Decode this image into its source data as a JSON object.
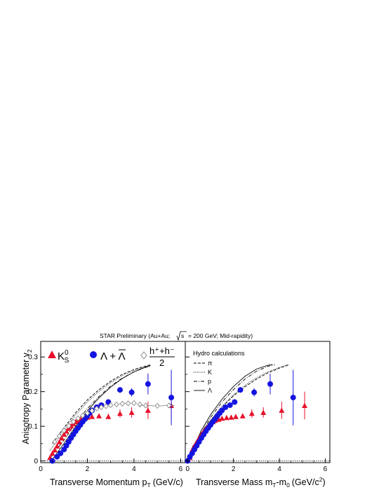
{
  "figure": {
    "title": "STAR Preliminary (Au+Au;",
    "title_sqrt": "s",
    "title_tail": "= 200 GeV; Mid-rapidity)",
    "ylabel": "Anisotropy Parameter v",
    "ylabel_sub": "2"
  },
  "chart_data": [
    {
      "type": "scatter",
      "panel": "left",
      "xlabel": "Transverse Momentum p",
      "xlabel_sub": "T",
      "xlabel_unit": "(GeV/c)",
      "xlim": [
        0,
        6.2
      ],
      "ylim": [
        -0.005,
        0.345
      ],
      "xticks": [
        0,
        2,
        4,
        6
      ],
      "yticks": [
        0,
        0.1,
        0.2,
        0.3
      ],
      "ytick_labels": [
        "0",
        "0.1",
        "0.2",
        "0.3"
      ],
      "legend": {
        "ks_main": "K",
        "ks_sup": "0",
        "ks_sub": "S",
        "lambda": "Λ + Λ",
        "hadron_num": "h⁺+h⁻",
        "hadron_den": "2"
      },
      "series": [
        {
          "name": "K0S",
          "color": "#e8102a",
          "marker": "triangle",
          "x": [
            0.4,
            0.5,
            0.6,
            0.7,
            0.8,
            0.9,
            1.0,
            1.1,
            1.2,
            1.3,
            1.4,
            1.5,
            1.6,
            1.7,
            1.8,
            1.9,
            2.0,
            2.2,
            2.5,
            2.9,
            3.4,
            3.9,
            4.6,
            5.6
          ],
          "y": [
            0.01,
            0.022,
            0.032,
            0.043,
            0.055,
            0.066,
            0.077,
            0.086,
            0.094,
            0.101,
            0.107,
            0.113,
            0.117,
            0.12,
            0.123,
            0.125,
            0.126,
            0.128,
            0.13,
            0.128,
            0.137,
            0.14,
            0.146,
            0.16
          ],
          "yerr": [
            0.002,
            0.002,
            0.002,
            0.002,
            0.002,
            0.002,
            0.002,
            0.002,
            0.002,
            0.002,
            0.002,
            0.002,
            0.002,
            0.003,
            0.003,
            0.003,
            0.003,
            0.004,
            0.005,
            0.008,
            0.012,
            0.015,
            0.025,
            0.04
          ]
        },
        {
          "name": "Lambda + anti-Lambda",
          "color": "#1414e0",
          "marker": "circle",
          "x": [
            0.5,
            0.7,
            0.85,
            1.0,
            1.1,
            1.2,
            1.3,
            1.4,
            1.5,
            1.6,
            1.7,
            1.8,
            1.9,
            2.0,
            2.1,
            2.2,
            2.4,
            2.6,
            2.9,
            3.4,
            3.9,
            4.6,
            5.6
          ],
          "y": [
            0.0,
            0.012,
            0.022,
            0.033,
            0.044,
            0.055,
            0.066,
            0.076,
            0.086,
            0.095,
            0.104,
            0.113,
            0.121,
            0.13,
            0.138,
            0.146,
            0.155,
            0.161,
            0.17,
            0.205,
            0.198,
            0.222,
            0.183
          ],
          "yerr": [
            0.002,
            0.002,
            0.002,
            0.002,
            0.002,
            0.002,
            0.002,
            0.002,
            0.002,
            0.002,
            0.002,
            0.003,
            0.003,
            0.003,
            0.003,
            0.004,
            0.004,
            0.005,
            0.006,
            0.008,
            0.012,
            0.03,
            0.08
          ]
        },
        {
          "name": "(h+ + h-)/2",
          "color": "#888888",
          "marker": "diamond-open",
          "x": [
            0.6,
            0.8,
            1.0,
            1.2,
            1.4,
            1.6,
            1.8,
            2.0,
            2.2,
            2.4,
            2.6,
            2.8,
            3.0,
            3.25,
            3.5,
            3.75,
            4.0,
            4.25,
            4.5,
            5.0,
            5.5
          ],
          "y": [
            0.055,
            0.072,
            0.088,
            0.101,
            0.113,
            0.123,
            0.131,
            0.138,
            0.145,
            0.151,
            0.155,
            0.158,
            0.161,
            0.163,
            0.165,
            0.166,
            0.167,
            0.163,
            0.16,
            0.159,
            0.16
          ],
          "xerr": [
            0.1,
            0.1,
            0.1,
            0.1,
            0.1,
            0.1,
            0.1,
            0.1,
            0.1,
            0.1,
            0.1,
            0.1,
            0.1,
            0.125,
            0.125,
            0.125,
            0.125,
            0.125,
            0.25,
            0.25,
            0.25
          ]
        }
      ],
      "curves": [
        {
          "name": "pi",
          "style": "dashed",
          "x": [
            0.5,
            1,
            1.5,
            2,
            2.5,
            3,
            3.5,
            4,
            4.5,
            4.7
          ],
          "y": [
            0.05,
            0.096,
            0.139,
            0.176,
            0.206,
            0.23,
            0.25,
            0.264,
            0.274,
            0.277
          ]
        },
        {
          "name": "K",
          "style": "dotted",
          "x": [
            0.4,
            1,
            1.5,
            2,
            2.5,
            3,
            3.5,
            4,
            4.5,
            4.7
          ],
          "y": [
            0.03,
            0.09,
            0.133,
            0.17,
            0.201,
            0.226,
            0.246,
            0.261,
            0.272,
            0.275
          ]
        },
        {
          "name": "p",
          "style": "dashdot",
          "x": [
            0.4,
            1,
            1.5,
            2,
            2.5,
            3,
            3.5,
            4,
            4.5,
            4.7
          ],
          "y": [
            0.008,
            0.06,
            0.11,
            0.151,
            0.186,
            0.216,
            0.239,
            0.257,
            0.27,
            0.274
          ]
        },
        {
          "name": "Lambda",
          "style": "solid",
          "x": [
            0.5,
            1,
            1.5,
            2,
            2.5,
            3,
            3.5,
            4,
            4.5,
            4.7
          ],
          "y": [
            0.005,
            0.05,
            0.1,
            0.145,
            0.182,
            0.213,
            0.238,
            0.257,
            0.271,
            0.275
          ]
        }
      ]
    },
    {
      "type": "scatter",
      "panel": "right",
      "xlabel": "Transverse Mass m",
      "xlabel_sub": "T",
      "xlabel_mid": "-m",
      "xlabel_sub2": "0",
      "xlabel_unit": "(GeV/c",
      "xlabel_sup": "2",
      "xlabel_close": ")",
      "xlim": [
        -0.1,
        6.2
      ],
      "ylim": [
        -0.005,
        0.345
      ],
      "xticks": [
        0,
        2,
        4,
        6
      ],
      "legend": {
        "title": "Hydro calculations",
        "entries": [
          "π",
          "K",
          "p",
          "Λ"
        ]
      },
      "series": [
        {
          "name": "K0S",
          "color": "#e8102a",
          "marker": "triangle",
          "x": [
            0.1,
            0.15,
            0.2,
            0.3,
            0.4,
            0.5,
            0.6,
            0.7,
            0.8,
            0.9,
            1.0,
            1.1,
            1.2,
            1.35,
            1.5,
            1.7,
            1.9,
            2.1,
            2.4,
            2.8,
            3.3,
            4.1,
            5.1
          ],
          "y": [
            0.01,
            0.022,
            0.032,
            0.043,
            0.055,
            0.066,
            0.077,
            0.086,
            0.094,
            0.101,
            0.107,
            0.113,
            0.117,
            0.12,
            0.123,
            0.125,
            0.126,
            0.128,
            0.13,
            0.137,
            0.14,
            0.146,
            0.16
          ],
          "yerr": [
            0.002,
            0.002,
            0.002,
            0.002,
            0.002,
            0.002,
            0.002,
            0.002,
            0.002,
            0.002,
            0.002,
            0.002,
            0.002,
            0.003,
            0.003,
            0.003,
            0.003,
            0.004,
            0.005,
            0.012,
            0.015,
            0.025,
            0.04
          ]
        },
        {
          "name": "Lambda + anti-Lambda",
          "color": "#1414e0",
          "marker": "circle",
          "x": [
            0.0,
            0.1,
            0.2,
            0.3,
            0.4,
            0.5,
            0.6,
            0.7,
            0.8,
            0.9,
            1.0,
            1.1,
            1.2,
            1.3,
            1.4,
            1.5,
            1.65,
            1.85,
            2.05,
            2.3,
            2.9,
            3.6,
            4.6
          ],
          "y": [
            0.0,
            0.012,
            0.022,
            0.033,
            0.044,
            0.055,
            0.066,
            0.076,
            0.086,
            0.095,
            0.104,
            0.113,
            0.121,
            0.13,
            0.138,
            0.146,
            0.155,
            0.161,
            0.17,
            0.205,
            0.198,
            0.222,
            0.183
          ],
          "yerr": [
            0.002,
            0.002,
            0.002,
            0.002,
            0.002,
            0.002,
            0.002,
            0.002,
            0.002,
            0.002,
            0.002,
            0.003,
            0.003,
            0.003,
            0.003,
            0.004,
            0.004,
            0.005,
            0.006,
            0.008,
            0.012,
            0.03,
            0.08
          ]
        }
      ],
      "curves": [
        {
          "name": "pi",
          "style": "dashed",
          "x": [
            0.2,
            0.6,
            1,
            1.5,
            2,
            2.5,
            3,
            3.5,
            4,
            4.4
          ],
          "y": [
            0.04,
            0.08,
            0.115,
            0.155,
            0.188,
            0.214,
            0.236,
            0.254,
            0.268,
            0.277
          ]
        },
        {
          "name": "K",
          "style": "dotted",
          "x": [
            0.1,
            0.5,
            1,
            1.5,
            2,
            2.5,
            3,
            3.5,
            4,
            4.4
          ],
          "y": [
            0.015,
            0.07,
            0.118,
            0.158,
            0.191,
            0.218,
            0.24,
            0.257,
            0.27,
            0.278
          ]
        },
        {
          "name": "p",
          "style": "dashdot",
          "x": [
            0.0,
            0.3,
            0.6,
            1,
            1.5,
            2,
            2.5,
            3,
            3.5,
            3.8
          ],
          "y": [
            0.0,
            0.04,
            0.08,
            0.125,
            0.17,
            0.206,
            0.236,
            0.259,
            0.273,
            0.278
          ]
        },
        {
          "name": "Lambda",
          "style": "solid",
          "x": [
            0.0,
            0.3,
            0.6,
            1,
            1.5,
            2,
            2.5,
            3,
            3.5,
            3.7
          ],
          "y": [
            0.0,
            0.045,
            0.088,
            0.133,
            0.178,
            0.215,
            0.244,
            0.265,
            0.276,
            0.278
          ]
        }
      ]
    }
  ]
}
